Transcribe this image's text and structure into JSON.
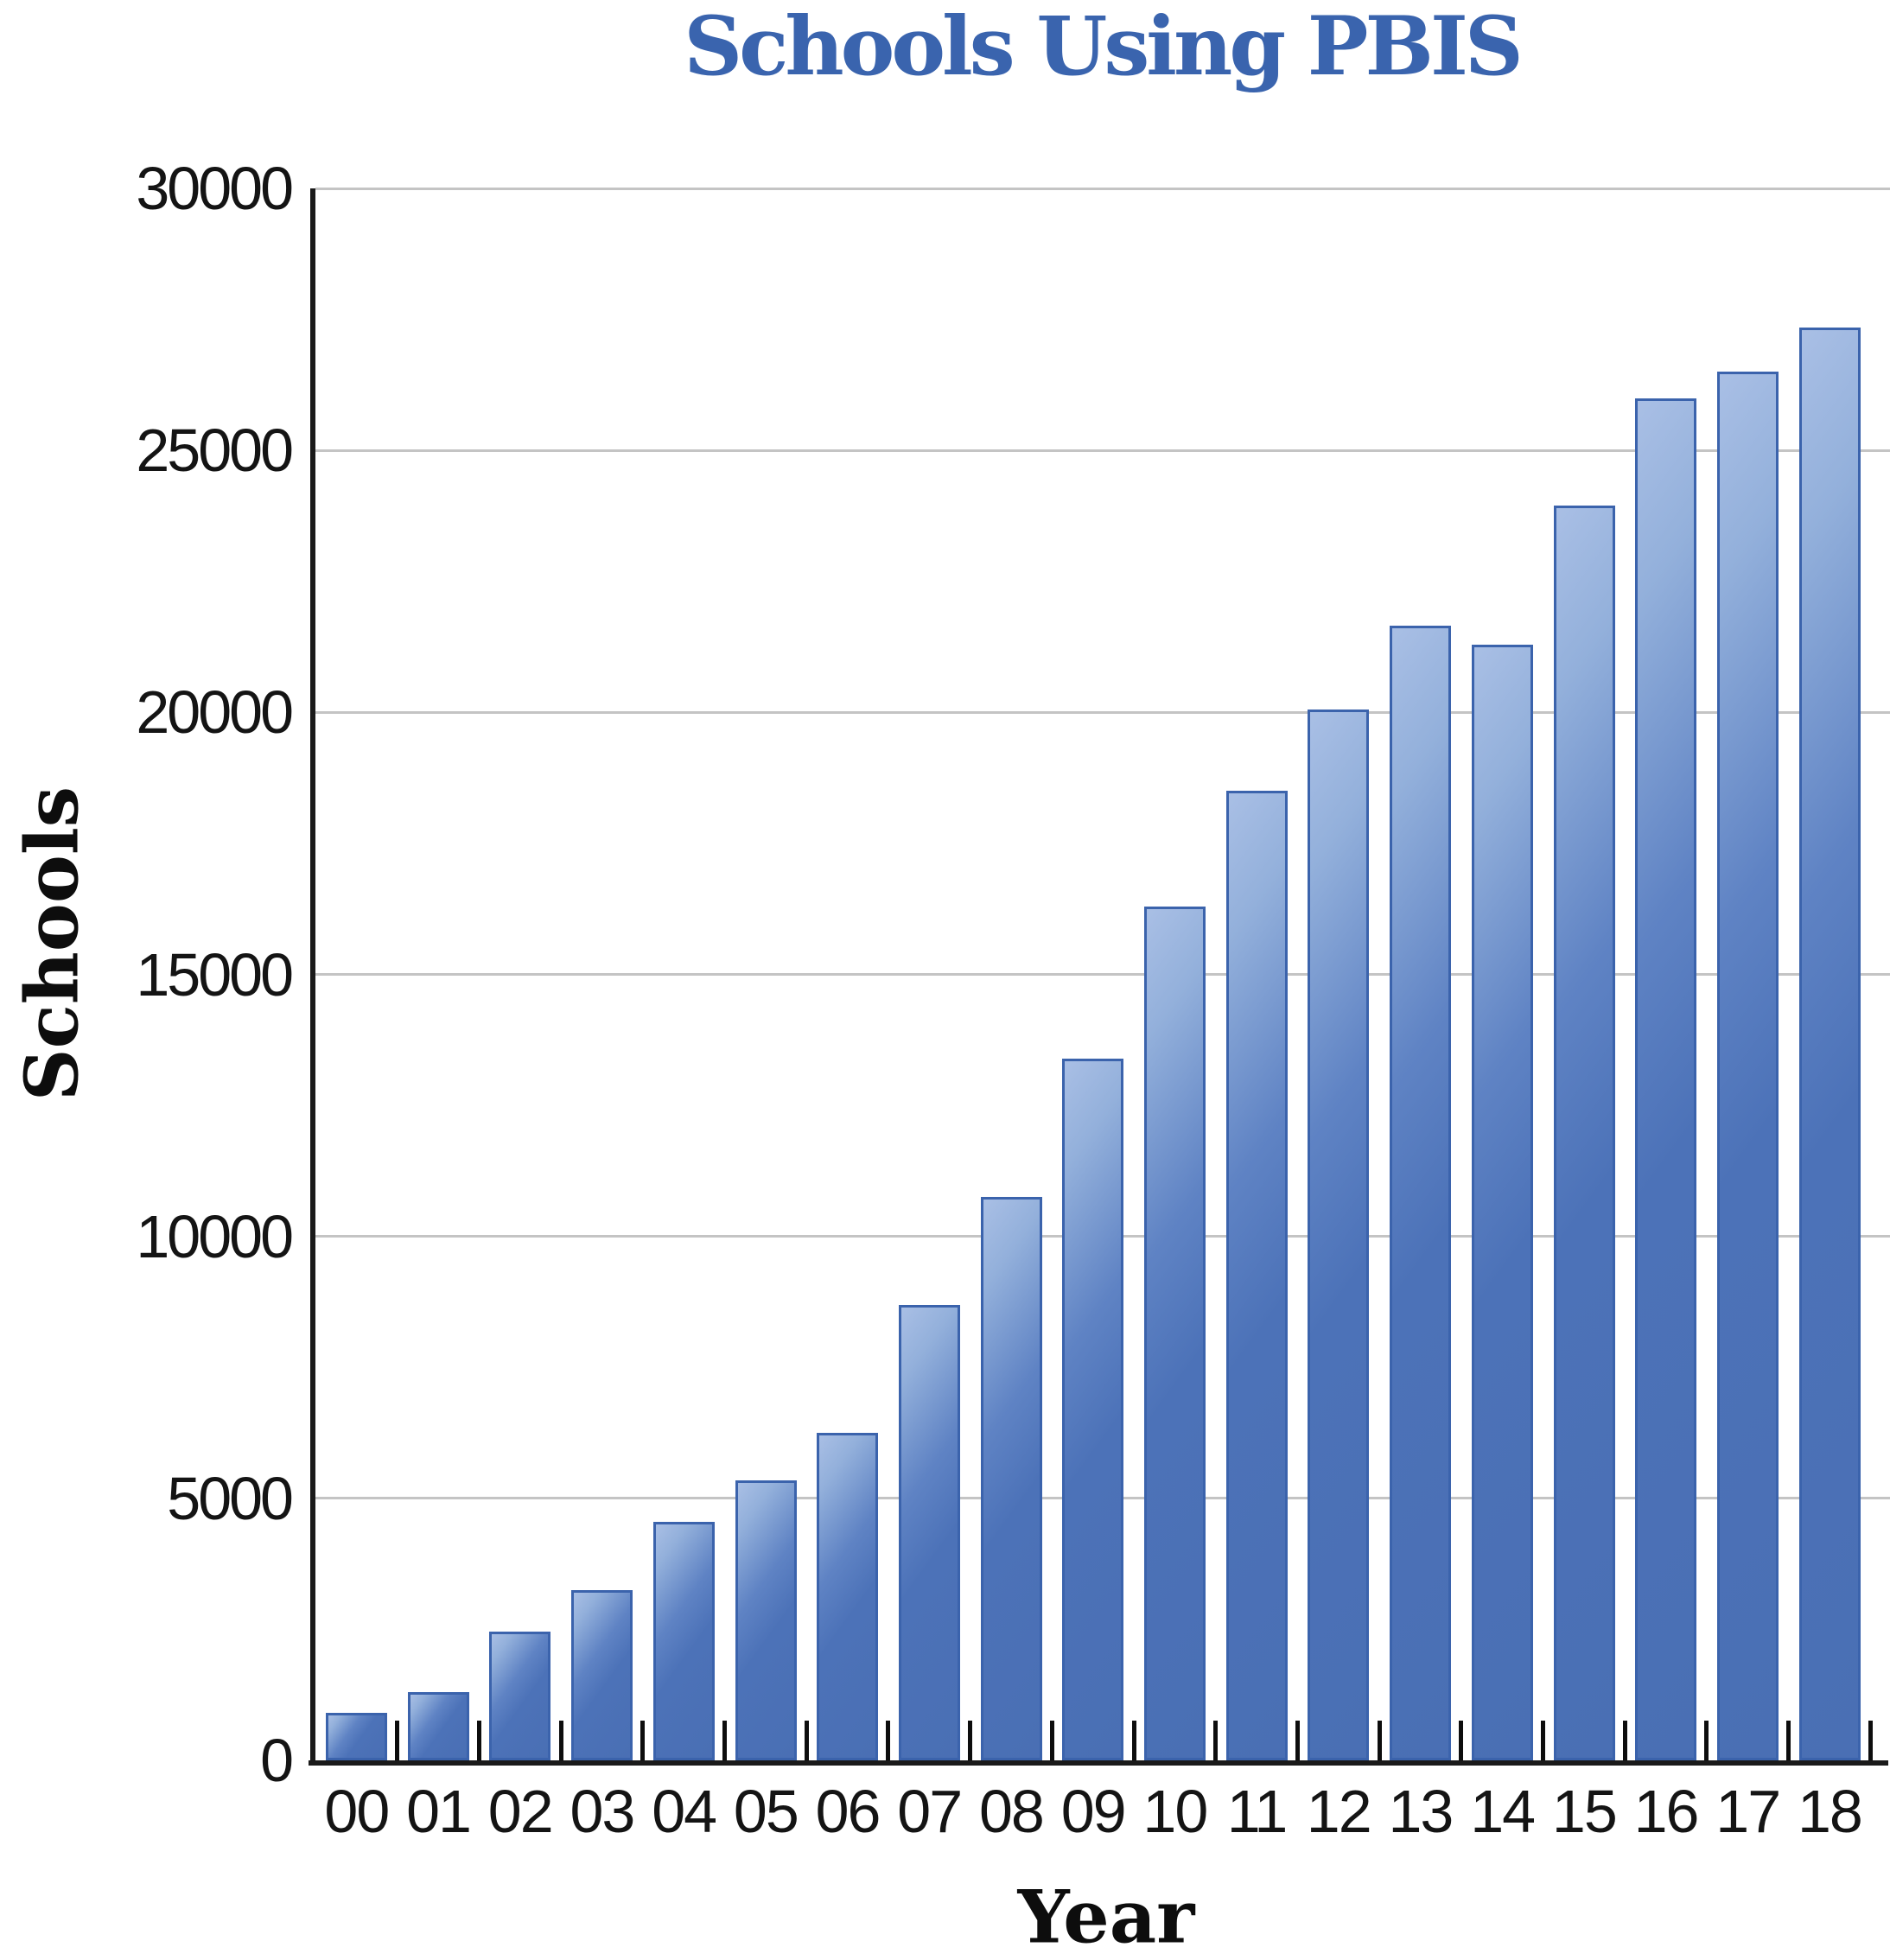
{
  "chart_data": {
    "type": "bar",
    "title": "Schools Using PBIS",
    "xlabel": "Year",
    "ylabel": "Schools",
    "categories": [
      "00",
      "01",
      "02",
      "03",
      "04",
      "05",
      "06",
      "07",
      "08",
      "09",
      "10",
      "11",
      "12",
      "13",
      "14",
      "15",
      "16",
      "17",
      "18"
    ],
    "values": [
      850,
      1250,
      2400,
      3200,
      4500,
      5300,
      6200,
      8650,
      10700,
      13350,
      16250,
      18450,
      20000,
      21600,
      21250,
      23900,
      25950,
      26450,
      27300
    ],
    "ylim": [
      0,
      30000
    ],
    "yticks": [
      0,
      5000,
      10000,
      15000,
      20000,
      25000,
      30000
    ],
    "ytick_labels": [
      "0",
      "5000",
      "10000",
      "15000",
      "20000",
      "25000",
      "30000"
    ],
    "grid": true,
    "legend": "none",
    "colors": {
      "title": "#3a64ae",
      "bar_fill_light": "#a9bfe5",
      "bar_fill_dark": "#4a6fb4",
      "bar_border": "#3b63ac",
      "gridline": "#c4c4c4",
      "axis": "#1a1a1a",
      "tick_text": "#141414"
    }
  }
}
